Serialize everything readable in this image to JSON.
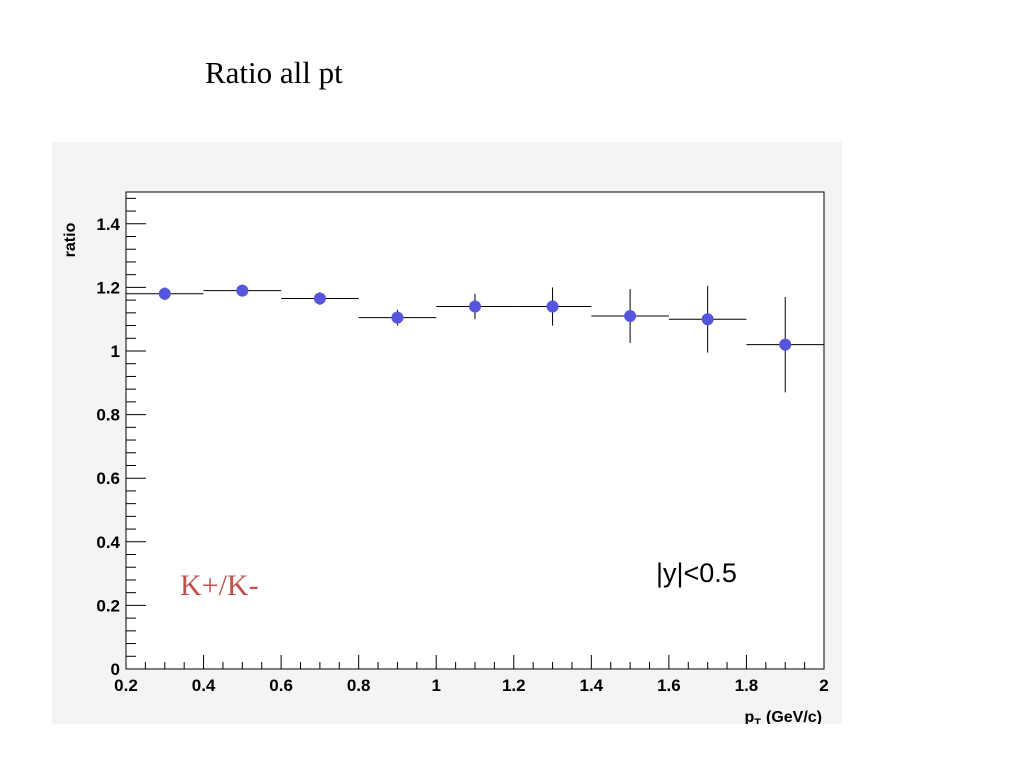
{
  "title": "Ratio all pt",
  "chart_data": {
    "type": "scatter",
    "xlabel": "p",
    "xlabel_sub": "T",
    "xlabel_unit": "(GeV/c)",
    "ylabel": "ratio",
    "xlim": [
      0.2,
      2.0
    ],
    "ylim": [
      0,
      1.5
    ],
    "x_ticks": [
      "0.2",
      "0.4",
      "0.6",
      "0.8",
      "1",
      "1.2",
      "1.4",
      "1.6",
      "1.8",
      "2"
    ],
    "y_ticks": [
      "0",
      "0.2",
      "0.4",
      "0.6",
      "0.8",
      "1",
      "1.2",
      "1.4"
    ],
    "grid": false,
    "marker_color": "#5555dd",
    "points": [
      {
        "x": 0.3,
        "y": 1.18,
        "xerr": 0.1,
        "yerr": 0.02
      },
      {
        "x": 0.5,
        "y": 1.19,
        "xerr": 0.1,
        "yerr": 0.015
      },
      {
        "x": 0.7,
        "y": 1.165,
        "xerr": 0.1,
        "yerr": 0.02
      },
      {
        "x": 0.9,
        "y": 1.105,
        "xerr": 0.1,
        "yerr": 0.025
      },
      {
        "x": 1.1,
        "y": 1.14,
        "xerr": 0.1,
        "yerr": 0.04
      },
      {
        "x": 1.3,
        "y": 1.14,
        "xerr": 0.1,
        "yerr": 0.06
      },
      {
        "x": 1.5,
        "y": 1.11,
        "xerr": 0.1,
        "yerr": 0.085
      },
      {
        "x": 1.7,
        "y": 1.1,
        "xerr": 0.1,
        "yerr": 0.105
      },
      {
        "x": 1.9,
        "y": 1.02,
        "xerr": 0.1,
        "yerr": 0.15
      }
    ],
    "annotations": [
      {
        "text": "K+/K-",
        "color": "#c0504d"
      },
      {
        "text": "|y|<0.5",
        "color": "#000000"
      }
    ]
  }
}
